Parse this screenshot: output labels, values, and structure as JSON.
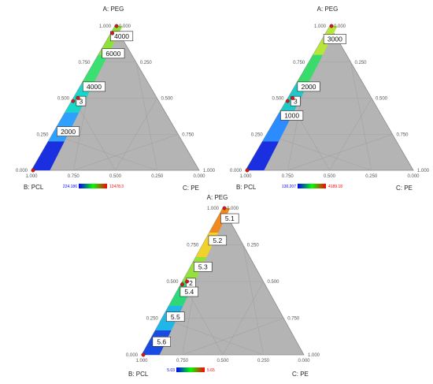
{
  "chart_data": [
    {
      "type": "ternary-contour",
      "vertices": {
        "top": "A: PEG",
        "left": "B: PCL",
        "right": "C: PE"
      },
      "ticks": [
        "1.000",
        "0.750",
        "0.500",
        "0.250",
        "0.000"
      ],
      "series": [
        {
          "contours": [
            "4000",
            "6000",
            "4000",
            "3",
            "2000"
          ]
        },
        {
          "points": [
            [
              1.0,
              0.0,
              0.0
            ],
            [
              0.95,
              0.05,
              0.0
            ],
            [
              0.5,
              0.48,
              0.02
            ],
            [
              0.48,
              0.52,
              0.0
            ],
            [
              0.0,
              1.0,
              0.0
            ]
          ]
        }
      ],
      "legend": {
        "min": "224.186",
        "max": "12478.3",
        "colors": [
          "#0000ff",
          "#00ff00",
          "#ff0000"
        ]
      },
      "band_colors": [
        "#1a2fe0",
        "#2ea0ff",
        "#18d6c8",
        "#3be070",
        "#8fe03a"
      ]
    },
    {
      "type": "ternary-contour",
      "vertices": {
        "top": "A: PEG",
        "left": "B: PCL",
        "right": "C: PE"
      },
      "ticks": [
        "1.000",
        "0.750",
        "0.500",
        "0.250",
        "0.000"
      ],
      "series": [
        {
          "contours": [
            "3000",
            "2000",
            "3",
            "1000"
          ]
        },
        {
          "points": [
            [
              1.0,
              0.0,
              0.0
            ],
            [
              0.5,
              0.48,
              0.02
            ],
            [
              0.48,
              0.52,
              0.0
            ],
            [
              0.0,
              1.0,
              0.0
            ]
          ]
        }
      ],
      "legend": {
        "min": "130.207",
        "max": "4189.18",
        "colors": [
          "#0000ff",
          "#00ff00",
          "#ff0000"
        ]
      },
      "band_colors": [
        "#1a2fe0",
        "#2a8cff",
        "#22c8c8",
        "#39dc6a",
        "#b6e63a"
      ]
    },
    {
      "type": "ternary-contour",
      "vertices": {
        "top": "A: PEG",
        "left": "B: PCL",
        "right": "C: PE"
      },
      "ticks": [
        "1.000",
        "0.750",
        "0.500",
        "0.250",
        "0.000"
      ],
      "series": [
        {
          "contours": [
            "5.1",
            "5.2",
            "5.3",
            "2",
            "5.4",
            "5.5",
            "5.6"
          ]
        },
        {
          "points": [
            [
              1.0,
              0.0,
              0.0
            ],
            [
              0.5,
              0.48,
              0.02
            ],
            [
              0.48,
              0.52,
              0.0
            ],
            [
              0.0,
              1.0,
              0.0
            ]
          ]
        }
      ],
      "legend": {
        "min": "5.03",
        "max": "5.65",
        "colors": [
          "#0000ff",
          "#00ff00",
          "#ff0000"
        ]
      },
      "band_colors": [
        "#1a4be0",
        "#21b6e8",
        "#2ed77a",
        "#96e03c",
        "#f0d22a",
        "#f08a1e"
      ]
    }
  ]
}
